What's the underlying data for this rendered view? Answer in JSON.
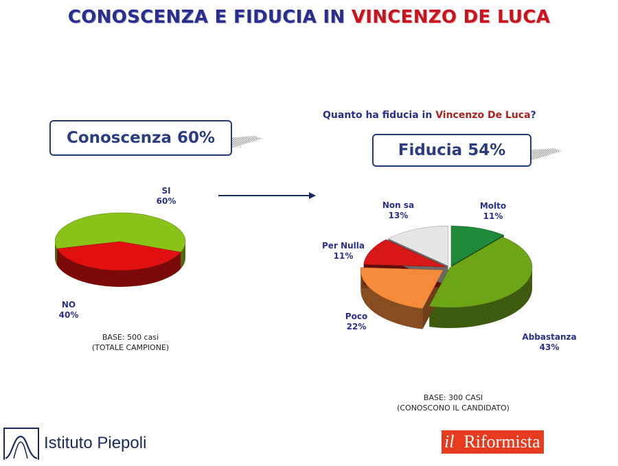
{
  "title": {
    "prefix": "CONOSCENZA E FIDUCIA IN ",
    "name": "VINCENZO DE LUCA"
  },
  "question": {
    "prefix": "Quanto ha fiducia in ",
    "name": "Vincenzo De Luca",
    "suffix": "?"
  },
  "knowledge_box": "Conoscenza 60%",
  "trust_box": "Fiducia 54%",
  "knowledge_base": [
    "BASE: 500 casi",
    "(TOTALE CAMPIONE)"
  ],
  "trust_base": [
    "BASE: 300 CASI",
    "(CONOSCONO IL CANDIDATO)"
  ],
  "logos": {
    "piepoli": "Istituto Piepoli",
    "riformista_il": "il",
    "riformista_name": "Riformista"
  },
  "colors": {
    "title_blue": "#2a2f8f",
    "title_red": "#c8141e",
    "si_green": "#8bc21a",
    "no_red": "#e01010",
    "molto_green": "#1f8a3a",
    "abbastanza_green": "#6ea516",
    "poco_orange": "#f58a3a",
    "per_nulla_red": "#d81818",
    "non_sa_grey": "#e6e6e6"
  },
  "chart_data": [
    {
      "type": "pie",
      "categories": [
        "SI",
        "NO"
      ],
      "values": [
        60,
        40
      ],
      "labels": [
        {
          "name": "SI",
          "pct": "60%"
        },
        {
          "name": "NO",
          "pct": "40%"
        }
      ]
    },
    {
      "type": "pie",
      "categories": [
        "Molto",
        "Abbastanza",
        "Poco",
        "Per Nulla",
        "Non sa"
      ],
      "values": [
        11,
        43,
        22,
        11,
        13
      ],
      "labels": [
        {
          "name": "Molto",
          "pct": "11%"
        },
        {
          "name": "Abbastanza",
          "pct": "43%"
        },
        {
          "name": "Poco",
          "pct": "22%"
        },
        {
          "name": "Per Nulla",
          "pct": "11%"
        },
        {
          "name": "Non sa",
          "pct": "13%"
        }
      ]
    }
  ]
}
